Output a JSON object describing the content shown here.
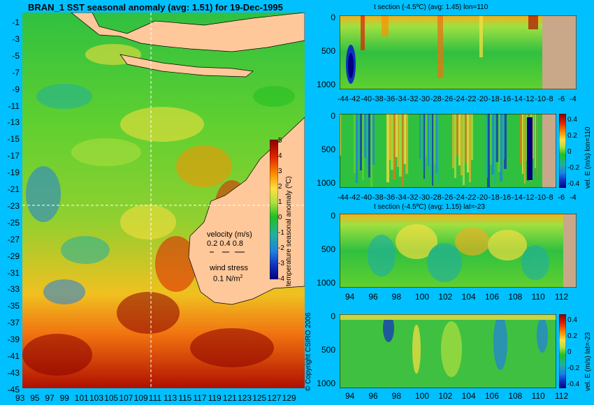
{
  "map": {
    "title": "BRAN_1 SST seasonal anomaly (avg: 1.51) for 19-Dec-1995",
    "x_ticks": [
      "93",
      "95",
      "97",
      "99",
      "101",
      "103",
      "105",
      "107",
      "109",
      "111",
      "113",
      "115",
      "117",
      "119",
      "121",
      "123",
      "125",
      "127",
      "129"
    ],
    "y_ticks": [
      "-1",
      "-3",
      "-5",
      "-7",
      "-9",
      "-11",
      "-13",
      "-15",
      "-17",
      "-19",
      "-21",
      "-23",
      "-25",
      "-27",
      "-29",
      "-31",
      "-33",
      "-35",
      "-37",
      "-39",
      "-41",
      "-43",
      "-45"
    ],
    "colorbar": {
      "label": "temperature seasonal anomaly (ºC)",
      "ticks": [
        "5",
        "4",
        "3",
        "2",
        "1",
        "0",
        "-1",
        "-2",
        "-3",
        "-4"
      ]
    },
    "legend": {
      "velocity_title": "velocity (m/s)",
      "velocity_scale": "0.2 0.4 0.8",
      "wind_title": "wind stress",
      "wind_scale": "0.1 N/m",
      "wind_exp": "2"
    },
    "copyright": "© Copyright CSIRO 2006"
  },
  "panels": {
    "p1": {
      "title": "t section (-4.5ºC) (avg: 1.45) lon=110",
      "x_ticks": [
        "-44",
        "-42",
        "-40",
        "-38",
        "-36",
        "-34",
        "-32",
        "-30",
        "-28",
        "-26",
        "-24",
        "-22",
        "-20",
        "-18",
        "-16",
        "-14",
        "-12",
        "-10",
        "-8",
        "-6",
        "-4"
      ],
      "y_ticks": [
        "0",
        "500",
        "1000"
      ]
    },
    "p2": {
      "label": "vel. E (m/s) lon=110",
      "x_ticks": [
        "-44",
        "-42",
        "-40",
        "-38",
        "-36",
        "-34",
        "-32",
        "-30",
        "-28",
        "-26",
        "-24",
        "-22",
        "-20",
        "-18",
        "-16",
        "-14",
        "-12",
        "-10",
        "-8",
        "-6",
        "-4"
      ],
      "y_ticks": [
        "0",
        "500",
        "1000"
      ],
      "cb_ticks": [
        "0.4",
        "0.2",
        "0",
        "-0.2",
        "-0.4"
      ]
    },
    "p3": {
      "title": "t section (-4.5ºC) (avg: 1.15) lat=-23",
      "x_ticks": [
        "94",
        "96",
        "98",
        "100",
        "102",
        "104",
        "106",
        "108",
        "110",
        "112"
      ],
      "y_ticks": [
        "0",
        "500",
        "1000"
      ]
    },
    "p4": {
      "label": "vel. E (m/s) lat=-23",
      "x_ticks": [
        "94",
        "96",
        "98",
        "100",
        "102",
        "104",
        "106",
        "108",
        "110",
        "112"
      ],
      "y_ticks": [
        "0",
        "500",
        "1000"
      ],
      "cb_ticks": [
        "0.4",
        "0.2",
        "0",
        "-0.2",
        "-0.4"
      ]
    }
  },
  "chart_data": [
    {
      "type": "heatmap",
      "title": "BRAN_1 SST seasonal anomaly (avg: 1.51) for 19-Dec-1995",
      "xlabel": "",
      "ylabel": "",
      "xlim": [
        93,
        130
      ],
      "ylim": [
        -45,
        0
      ],
      "colorbar_label": "temperature seasonal anomaly (ºC)",
      "colorbar_range": [
        -4,
        5
      ],
      "average": 1.51
    },
    {
      "type": "heatmap",
      "title": "t section (-4.5ºC) (avg: 1.45) lon=110",
      "xlim": [
        -45,
        -3
      ],
      "ylim": [
        1050,
        0
      ],
      "average": 1.45
    },
    {
      "type": "heatmap",
      "title": "",
      "colorbar_label": "vel. E (m/s) lon=110",
      "xlim": [
        -45,
        -3
      ],
      "ylim": [
        1050,
        0
      ],
      "colorbar_range": [
        -0.4,
        0.4
      ]
    },
    {
      "type": "heatmap",
      "title": "t section (-4.5ºC) (avg: 1.15) lat=-23",
      "xlim": [
        93,
        114
      ],
      "ylim": [
        1050,
        0
      ],
      "average": 1.15
    },
    {
      "type": "heatmap",
      "title": "",
      "colorbar_label": "vel. E (m/s) lat=-23",
      "xlim": [
        93,
        114
      ],
      "ylim": [
        1050,
        0
      ],
      "colorbar_range": [
        -0.4,
        0.4
      ]
    }
  ]
}
